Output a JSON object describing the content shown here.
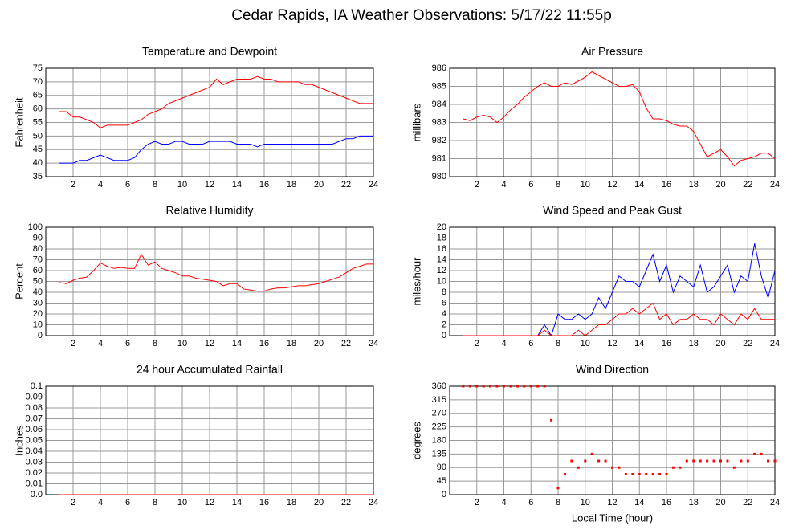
{
  "title": "Cedar Rapids, IA Weather Observations: 5/17/22 11:55p",
  "chart_data": [
    {
      "type": "line",
      "title": "Temperature and Dewpoint",
      "ylabel": "Fahrenheit",
      "x": [
        1,
        1.5,
        2,
        2.5,
        3,
        3.5,
        4,
        4.5,
        5,
        5.5,
        6,
        6.5,
        7,
        7.5,
        8,
        8.5,
        9,
        9.5,
        10,
        10.5,
        11,
        11.5,
        12,
        12.5,
        13,
        13.5,
        14,
        14.5,
        15,
        15.5,
        16,
        16.5,
        17,
        17.5,
        18,
        18.5,
        19,
        19.5,
        20,
        20.5,
        21,
        21.5,
        22,
        22.5,
        23,
        23.5,
        24
      ],
      "series": [
        {
          "color": "#ff0000",
          "values": [
            59,
            59,
            57,
            57,
            56,
            55,
            53,
            54,
            54,
            54,
            54,
            55,
            56,
            58,
            59,
            60,
            62,
            63,
            64,
            65,
            66,
            67,
            68,
            71,
            69,
            70,
            71,
            71,
            71,
            72,
            71,
            71,
            70,
            70,
            70,
            70,
            69,
            69,
            68,
            67,
            66,
            65,
            64,
            63,
            62,
            62,
            62
          ]
        },
        {
          "color": "#0000ff",
          "values": [
            40,
            40,
            40,
            41,
            41,
            42,
            43,
            42,
            41,
            41,
            41,
            42,
            45,
            47,
            48,
            47,
            47,
            48,
            48,
            47,
            47,
            47,
            48,
            48,
            48,
            48,
            47,
            47,
            47,
            46,
            47,
            47,
            47,
            47,
            47,
            47,
            47,
            47,
            47,
            47,
            47,
            48,
            49,
            49,
            50,
            50,
            50
          ]
        }
      ],
      "xlim": [
        0,
        24
      ],
      "xticks": [
        2,
        4,
        6,
        8,
        10,
        12,
        14,
        16,
        18,
        20,
        22,
        24
      ],
      "ylim": [
        35,
        75
      ],
      "yticks": [
        35,
        40,
        45,
        50,
        55,
        60,
        65,
        70,
        75
      ]
    },
    {
      "type": "line",
      "title": "Air Pressure",
      "ylabel": "millibars",
      "x": [
        1,
        1.5,
        2,
        2.5,
        3,
        3.5,
        4,
        4.5,
        5,
        5.5,
        6,
        6.5,
        7,
        7.5,
        8,
        8.5,
        9,
        9.5,
        10,
        10.5,
        11,
        11.5,
        12,
        12.5,
        13,
        13.5,
        14,
        14.5,
        15,
        15.5,
        16,
        16.5,
        17,
        17.5,
        18,
        18.5,
        19,
        19.5,
        20,
        20.5,
        21,
        21.5,
        22,
        22.5,
        23,
        23.5,
        24
      ],
      "series": [
        {
          "color": "#ff0000",
          "values": [
            983.2,
            983.1,
            983.3,
            983.4,
            983.3,
            983.0,
            983.3,
            983.7,
            984.0,
            984.4,
            984.7,
            985.0,
            985.2,
            985.0,
            985.0,
            985.2,
            985.1,
            985.3,
            985.5,
            985.8,
            985.6,
            985.4,
            985.2,
            985.0,
            985.0,
            985.1,
            984.7,
            983.8,
            983.2,
            983.2,
            983.1,
            982.9,
            982.8,
            982.8,
            982.5,
            981.8,
            981.1,
            981.3,
            981.5,
            981.1,
            980.6,
            980.9,
            981.0,
            981.1,
            981.3,
            981.3,
            981.0
          ]
        }
      ],
      "xlim": [
        0,
        24
      ],
      "xticks": [
        2,
        4,
        6,
        8,
        10,
        12,
        14,
        16,
        18,
        20,
        22,
        24
      ],
      "ylim": [
        980,
        986
      ],
      "yticks": [
        980,
        981,
        982,
        983,
        984,
        985,
        986
      ]
    },
    {
      "type": "line",
      "title": "Relative Humidity",
      "ylabel": "Percent",
      "x": [
        1,
        1.5,
        2,
        2.5,
        3,
        3.5,
        4,
        4.5,
        5,
        5.5,
        6,
        6.5,
        7,
        7.5,
        8,
        8.5,
        9,
        9.5,
        10,
        10.5,
        11,
        11.5,
        12,
        12.5,
        13,
        13.5,
        14,
        14.5,
        15,
        15.5,
        16,
        16.5,
        17,
        17.5,
        18,
        18.5,
        19,
        19.5,
        20,
        20.5,
        21,
        21.5,
        22,
        22.5,
        23,
        23.5,
        24
      ],
      "series": [
        {
          "color": "#ff0000",
          "values": [
            49,
            48,
            51,
            53,
            54,
            60,
            67,
            64,
            62,
            63,
            62,
            62,
            75,
            65,
            68,
            62,
            60,
            58,
            55,
            55,
            53,
            52,
            51,
            50,
            46,
            48,
            48,
            43,
            42,
            41,
            41,
            43,
            44,
            44,
            45,
            46,
            46,
            47,
            48,
            50,
            52,
            54,
            58,
            62,
            64,
            66,
            66
          ]
        }
      ],
      "xlim": [
        0,
        24
      ],
      "xticks": [
        2,
        4,
        6,
        8,
        10,
        12,
        14,
        16,
        18,
        20,
        22,
        24
      ],
      "ylim": [
        0,
        100
      ],
      "yticks": [
        0,
        10,
        20,
        30,
        40,
        50,
        60,
        70,
        80,
        90,
        100
      ]
    },
    {
      "type": "line",
      "title": "Wind Speed and Peak Gust",
      "ylabel": "miles/hour",
      "x": [
        1,
        1.5,
        2,
        2.5,
        3,
        3.5,
        4,
        4.5,
        5,
        5.5,
        6,
        6.5,
        7,
        7.5,
        8,
        8.5,
        9,
        9.5,
        10,
        10.5,
        11,
        11.5,
        12,
        12.5,
        13,
        13.5,
        14,
        14.5,
        15,
        15.5,
        16,
        16.5,
        17,
        17.5,
        18,
        18.5,
        19,
        19.5,
        20,
        20.5,
        21,
        21.5,
        22,
        22.5,
        23,
        23.5,
        24
      ],
      "series": [
        {
          "color": "#0000ff",
          "values": [
            0,
            0,
            0,
            0,
            0,
            0,
            0,
            0,
            0,
            0,
            0,
            0,
            2,
            0,
            4,
            3,
            3,
            4,
            3,
            4,
            7,
            5,
            8,
            11,
            10,
            10,
            9,
            12,
            15,
            10,
            13,
            8,
            11,
            10,
            9,
            13,
            8,
            9,
            11,
            13,
            8,
            11,
            10,
            17,
            11,
            7,
            12
          ]
        },
        {
          "color": "#ff0000",
          "values": [
            0,
            0,
            0,
            0,
            0,
            0,
            0,
            0,
            0,
            0,
            0,
            0,
            1,
            0,
            0,
            0,
            0,
            1,
            0,
            1,
            2,
            2,
            3,
            4,
            4,
            5,
            4,
            5,
            6,
            3,
            4,
            2,
            3,
            3,
            4,
            3,
            3,
            2,
            4,
            3,
            2,
            4,
            3,
            5,
            3,
            3,
            3
          ]
        }
      ],
      "xlim": [
        0,
        24
      ],
      "xticks": [
        2,
        4,
        6,
        8,
        10,
        12,
        14,
        16,
        18,
        20,
        22,
        24
      ],
      "ylim": [
        0,
        20
      ],
      "yticks": [
        0,
        2,
        4,
        6,
        8,
        10,
        12,
        14,
        16,
        18,
        20
      ]
    },
    {
      "type": "line",
      "title": "24 hour Accumulated Rainfall",
      "ylabel": "Inches",
      "x": [
        1,
        1.5,
        2,
        2.5,
        3,
        3.5,
        4,
        4.5,
        5,
        5.5,
        6,
        6.5,
        7,
        7.5,
        8,
        8.5,
        9,
        9.5,
        10,
        10.5,
        11,
        11.5,
        12,
        12.5,
        13,
        13.5,
        14,
        14.5,
        15,
        15.5,
        16,
        16.5,
        17,
        17.5,
        18,
        18.5,
        19,
        19.5,
        20,
        20.5,
        21,
        21.5,
        22,
        22.5,
        23,
        23.5,
        24
      ],
      "series": [
        {
          "color": "#ff0000",
          "values": [
            0,
            0,
            0,
            0,
            0,
            0,
            0,
            0,
            0,
            0,
            0,
            0,
            0,
            0,
            0,
            0,
            0,
            0,
            0,
            0,
            0,
            0,
            0,
            0,
            0,
            0,
            0,
            0,
            0,
            0,
            0,
            0,
            0,
            0,
            0,
            0,
            0,
            0,
            0,
            0,
            0,
            0,
            0,
            0,
            0,
            0,
            0
          ]
        }
      ],
      "xlim": [
        0,
        24
      ],
      "xticks": [
        2,
        4,
        6,
        8,
        10,
        12,
        14,
        16,
        18,
        20,
        22,
        24
      ],
      "ylim": [
        0,
        0.1
      ],
      "yticks": [
        {
          "value": 0,
          "label": "0.0"
        },
        0.01,
        0.02,
        0.03,
        0.04,
        0.05,
        0.06,
        0.07,
        0.08,
        0.09,
        0.1
      ]
    },
    {
      "type": "scatter",
      "title": "Wind Direction",
      "ylabel": "degrees",
      "xlabel": "Local Time (hour)",
      "x": [
        1,
        1.5,
        2,
        2.5,
        3,
        3.5,
        4,
        4.5,
        5,
        5.5,
        6,
        6.5,
        7,
        7.5,
        8,
        8.5,
        9,
        9.5,
        10,
        10.5,
        11,
        11.5,
        12,
        12.5,
        13,
        13.5,
        14,
        14.5,
        15,
        15.5,
        16,
        16.5,
        17,
        17.5,
        18,
        18.5,
        19,
        19.5,
        20,
        20.5,
        21,
        21.5,
        22,
        22.5,
        23,
        23.5,
        24
      ],
      "series": [
        {
          "color": "#ff0000",
          "values": [
            360,
            360,
            360,
            360,
            360,
            360,
            360,
            360,
            360,
            360,
            360,
            360,
            360,
            247,
            22,
            68,
            112,
            90,
            112,
            135,
            112,
            112,
            90,
            90,
            68,
            68,
            68,
            68,
            68,
            68,
            68,
            90,
            90,
            112,
            112,
            112,
            112,
            112,
            112,
            112,
            90,
            112,
            112,
            135,
            135,
            112,
            112
          ]
        }
      ],
      "xlim": [
        0,
        24
      ],
      "xticks": [
        2,
        4,
        6,
        8,
        10,
        12,
        14,
        16,
        18,
        20,
        22,
        24
      ],
      "ylim": [
        0,
        360
      ],
      "yticks": [
        0,
        45,
        90,
        135,
        180,
        225,
        270,
        315,
        360
      ]
    }
  ]
}
